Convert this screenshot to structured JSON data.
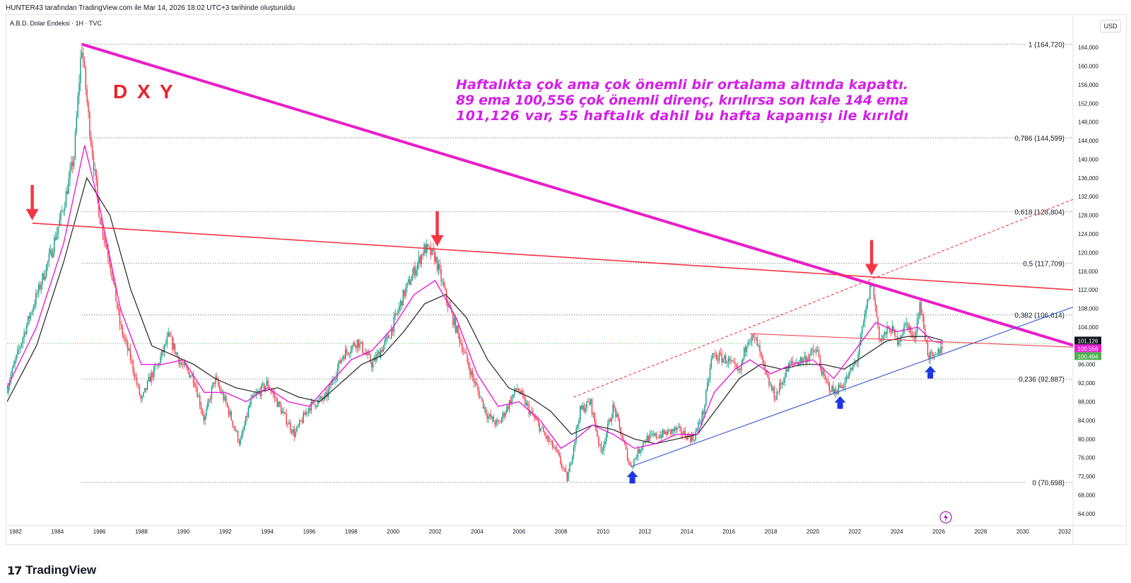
{
  "header": {
    "caption": "HUNTER43 tarafından TradingView.com ile Mar 14, 2026 18:02 UTC+3 tarihinde oluşturuldu",
    "symbol": "A.B.D. Dolar Endeksi · 1H · TVC",
    "currency_button": "USD"
  },
  "footer": {
    "brand": "TradingView"
  },
  "colors": {
    "candle_up": "#089981",
    "candle_down": "#f23645",
    "ema_fast": "#e91ed4",
    "ema_slow": "#222222",
    "major_trendline": "#e91ec8",
    "resistance_line": "#f23645",
    "support_line": "#3454d1",
    "arrow_down": "#f23645",
    "arrow_up": "#1b36e0",
    "price_line": "#4caf50",
    "fib_line": "#777777"
  },
  "chart_data": {
    "type": "candlestick",
    "title": "D X Y",
    "annotation": "Haftalıkta çok ama çok önemli bir ortalama altında kapattı.\n89 ema 100,556 çok önemli direnç, kırılırsa son kale 144 ema\n101,126 var, 55 haftalık dahil bu hafta kapanışı ile kırıldı",
    "x_range": [
      1981.6,
      2032.4
    ],
    "y_range": [
      62.0,
      167.5
    ],
    "x_ticks": [
      "1982",
      "1984",
      "1986",
      "1988",
      "1990",
      "1992",
      "1994",
      "1996",
      "1998",
      "2000",
      "2002",
      "2004",
      "2006",
      "2008",
      "2010",
      "2012",
      "2014",
      "2016",
      "2018",
      "2020",
      "2022",
      "2024",
      "2026",
      "2028",
      "2030",
      "2032"
    ],
    "y_ticks": [
      "164,000",
      "160,000",
      "156,000",
      "152,000",
      "148,000",
      "144,000",
      "140,000",
      "136,000",
      "132,000",
      "128,000",
      "124,000",
      "120,000",
      "116,000",
      "112,000",
      "108,000",
      "104,000",
      "100,000",
      "96,000",
      "92,000",
      "88,000",
      "84,000",
      "80,000",
      "76,000",
      "72,000",
      "68,000",
      "64,000"
    ],
    "fibonacci": [
      {
        "label": "1 (164,720)",
        "value": 164.72
      },
      {
        "label": "0,786 (144,599)",
        "value": 144.599
      },
      {
        "label": "0,618 (128,804)",
        "value": 128.804
      },
      {
        "label": "0,5 (117,709)",
        "value": 117.709
      },
      {
        "label": "0,382 (106,614)",
        "value": 106.614
      },
      {
        "label": "0,236 (92,887)",
        "value": 92.887
      },
      {
        "label": "0 (70,698)",
        "value": 70.698
      }
    ],
    "price_badges": [
      {
        "label": "101,126",
        "value": 101.126,
        "color": "#131722"
      },
      {
        "label": "100,556",
        "value": 100.556,
        "color": "#e91ed4"
      },
      {
        "label": "100,494",
        "value": 100.494,
        "color": "#4caf50"
      }
    ],
    "current_price": 100.494,
    "price_path": [
      [
        1981.6,
        91
      ],
      [
        1982.5,
        104
      ],
      [
        1983.1,
        112
      ],
      [
        1983.7,
        120
      ],
      [
        1984.3,
        130
      ],
      [
        1984.8,
        141
      ],
      [
        1985.15,
        164.7
      ],
      [
        1985.5,
        148
      ],
      [
        1986.0,
        128
      ],
      [
        1986.5,
        118
      ],
      [
        1987.0,
        104
      ],
      [
        1987.5,
        97
      ],
      [
        1988.0,
        88
      ],
      [
        1988.4,
        93
      ],
      [
        1988.8,
        96
      ],
      [
        1989.3,
        102
      ],
      [
        1989.9,
        96
      ],
      [
        1990.5,
        93
      ],
      [
        1991.0,
        84
      ],
      [
        1991.5,
        93
      ],
      [
        1992.0,
        88
      ],
      [
        1992.7,
        79
      ],
      [
        1993.2,
        88
      ],
      [
        1994.0,
        92
      ],
      [
        1994.8,
        85
      ],
      [
        1995.3,
        81
      ],
      [
        1996.0,
        87
      ],
      [
        1996.8,
        89
      ],
      [
        1997.6,
        98
      ],
      [
        1998.3,
        101
      ],
      [
        1999.0,
        96
      ],
      [
        1999.8,
        102
      ],
      [
        2000.5,
        111
      ],
      [
        2001.0,
        116
      ],
      [
        2001.5,
        121
      ],
      [
        2002.0,
        119
      ],
      [
        2002.6,
        109
      ],
      [
        2003.2,
        101
      ],
      [
        2003.8,
        93
      ],
      [
        2004.5,
        85
      ],
      [
        2005.0,
        83
      ],
      [
        2005.9,
        91
      ],
      [
        2006.5,
        86
      ],
      [
        2007.2,
        81
      ],
      [
        2007.8,
        77
      ],
      [
        2008.3,
        71.3
      ],
      [
        2008.9,
        86
      ],
      [
        2009.4,
        88
      ],
      [
        2009.9,
        77
      ],
      [
        2010.5,
        87
      ],
      [
        2011.3,
        74
      ],
      [
        2012.0,
        80
      ],
      [
        2012.8,
        81
      ],
      [
        2013.5,
        82
      ],
      [
        2014.3,
        80
      ],
      [
        2014.8,
        86
      ],
      [
        2015.2,
        98
      ],
      [
        2015.9,
        97
      ],
      [
        2016.5,
        94
      ],
      [
        2016.9,
        102
      ],
      [
        2017.3,
        101
      ],
      [
        2017.8,
        93
      ],
      [
        2018.2,
        89
      ],
      [
        2018.9,
        96
      ],
      [
        2019.5,
        97
      ],
      [
        2020.2,
        99
      ],
      [
        2020.5,
        93
      ],
      [
        2021.0,
        90
      ],
      [
        2021.5,
        92
      ],
      [
        2022.1,
        97
      ],
      [
        2022.8,
        114
      ],
      [
        2023.2,
        101
      ],
      [
        2023.7,
        104
      ],
      [
        2024.0,
        101
      ],
      [
        2024.5,
        105
      ],
      [
        2024.8,
        101
      ],
      [
        2025.1,
        109
      ],
      [
        2025.5,
        98
      ],
      [
        2025.8,
        97
      ],
      [
        2026.2,
        100.5
      ]
    ],
    "ema_fast_path": [
      [
        1981.6,
        91
      ],
      [
        1983.0,
        104
      ],
      [
        1984.3,
        122
      ],
      [
        1985.3,
        143
      ],
      [
        1986.0,
        130
      ],
      [
        1987.0,
        108
      ],
      [
        1988.0,
        96
      ],
      [
        1989.0,
        96
      ],
      [
        1990.0,
        97
      ],
      [
        1991.0,
        90
      ],
      [
        1992.0,
        90
      ],
      [
        1993.0,
        88
      ],
      [
        1994.0,
        91
      ],
      [
        1995.0,
        88
      ],
      [
        1996.0,
        87
      ],
      [
        1997.0,
        92
      ],
      [
        1998.0,
        97
      ],
      [
        1999.0,
        99
      ],
      [
        2000.0,
        104
      ],
      [
        2001.0,
        111
      ],
      [
        2002.0,
        114
      ],
      [
        2003.0,
        106
      ],
      [
        2004.0,
        94
      ],
      [
        2005.0,
        87
      ],
      [
        2006.0,
        88
      ],
      [
        2007.0,
        84
      ],
      [
        2008.0,
        78
      ],
      [
        2008.7,
        80
      ],
      [
        2009.5,
        83
      ],
      [
        2010.5,
        81
      ],
      [
        2011.5,
        78
      ],
      [
        2012.5,
        79
      ],
      [
        2013.5,
        81
      ],
      [
        2014.5,
        81
      ],
      [
        2015.3,
        90
      ],
      [
        2016.3,
        95
      ],
      [
        2017.0,
        97
      ],
      [
        2018.0,
        94
      ],
      [
        2019.0,
        96
      ],
      [
        2020.0,
        97
      ],
      [
        2021.0,
        93
      ],
      [
        2022.0,
        99
      ],
      [
        2023.0,
        105
      ],
      [
        2024.0,
        103
      ],
      [
        2025.0,
        104
      ],
      [
        2025.7,
        101
      ],
      [
        2026.2,
        100.556
      ]
    ],
    "ema_slow_path": [
      [
        1981.6,
        88
      ],
      [
        1983.0,
        100
      ],
      [
        1984.3,
        118
      ],
      [
        1985.4,
        136
      ],
      [
        1986.5,
        128
      ],
      [
        1987.5,
        112
      ],
      [
        1988.5,
        100
      ],
      [
        1989.5,
        98
      ],
      [
        1990.5,
        96
      ],
      [
        1991.5,
        93
      ],
      [
        1992.5,
        91
      ],
      [
        1993.5,
        90
      ],
      [
        1994.5,
        91
      ],
      [
        1995.5,
        89
      ],
      [
        1996.5,
        88
      ],
      [
        1997.5,
        92
      ],
      [
        1998.5,
        96
      ],
      [
        1999.5,
        98
      ],
      [
        2000.5,
        103
      ],
      [
        2001.5,
        109
      ],
      [
        2002.5,
        111
      ],
      [
        2003.5,
        106
      ],
      [
        2004.5,
        97
      ],
      [
        2005.5,
        91
      ],
      [
        2006.5,
        89
      ],
      [
        2007.5,
        86
      ],
      [
        2008.5,
        81
      ],
      [
        2009.5,
        83
      ],
      [
        2010.5,
        82
      ],
      [
        2011.5,
        80
      ],
      [
        2012.5,
        79
      ],
      [
        2013.5,
        80
      ],
      [
        2014.5,
        81
      ],
      [
        2015.5,
        87
      ],
      [
        2016.5,
        93
      ],
      [
        2017.5,
        96
      ],
      [
        2018.5,
        95
      ],
      [
        2019.5,
        96
      ],
      [
        2020.5,
        96
      ],
      [
        2021.5,
        95
      ],
      [
        2022.5,
        98
      ],
      [
        2023.5,
        101
      ],
      [
        2024.5,
        102
      ],
      [
        2025.5,
        102
      ],
      [
        2026.2,
        101.126
      ]
    ],
    "trendlines": [
      {
        "kind": "major_down",
        "from": [
          1985.15,
          164.7
        ],
        "to": [
          2032.4,
          100.1
        ]
      },
      {
        "kind": "resistance",
        "from": [
          1982.8,
          126.3
        ],
        "to": [
          2032.4,
          112.0
        ]
      },
      {
        "kind": "support",
        "from": [
          2011.4,
          74.2
        ],
        "to": [
          2032.4,
          108.3
        ]
      },
      {
        "kind": "support_upper_dashed",
        "from": [
          2008.6,
          89.0
        ],
        "to": [
          2032.4,
          131.4
        ]
      },
      {
        "kind": "minor_resistance",
        "from": [
          2017.0,
          102.6
        ],
        "to": [
          2032.4,
          99.7
        ]
      }
    ],
    "arrows": [
      {
        "dir": "down",
        "x": 1982.8,
        "y": 126.3
      },
      {
        "dir": "down",
        "x": 2002.1,
        "y": 120.7
      },
      {
        "dir": "down",
        "x": 2022.8,
        "y": 114.5
      },
      {
        "dir": "up",
        "x": 2011.4,
        "y": 73.5
      },
      {
        "dir": "up",
        "x": 2021.3,
        "y": 89.5
      },
      {
        "dir": "up",
        "x": 2025.6,
        "y": 96.0
      }
    ]
  }
}
